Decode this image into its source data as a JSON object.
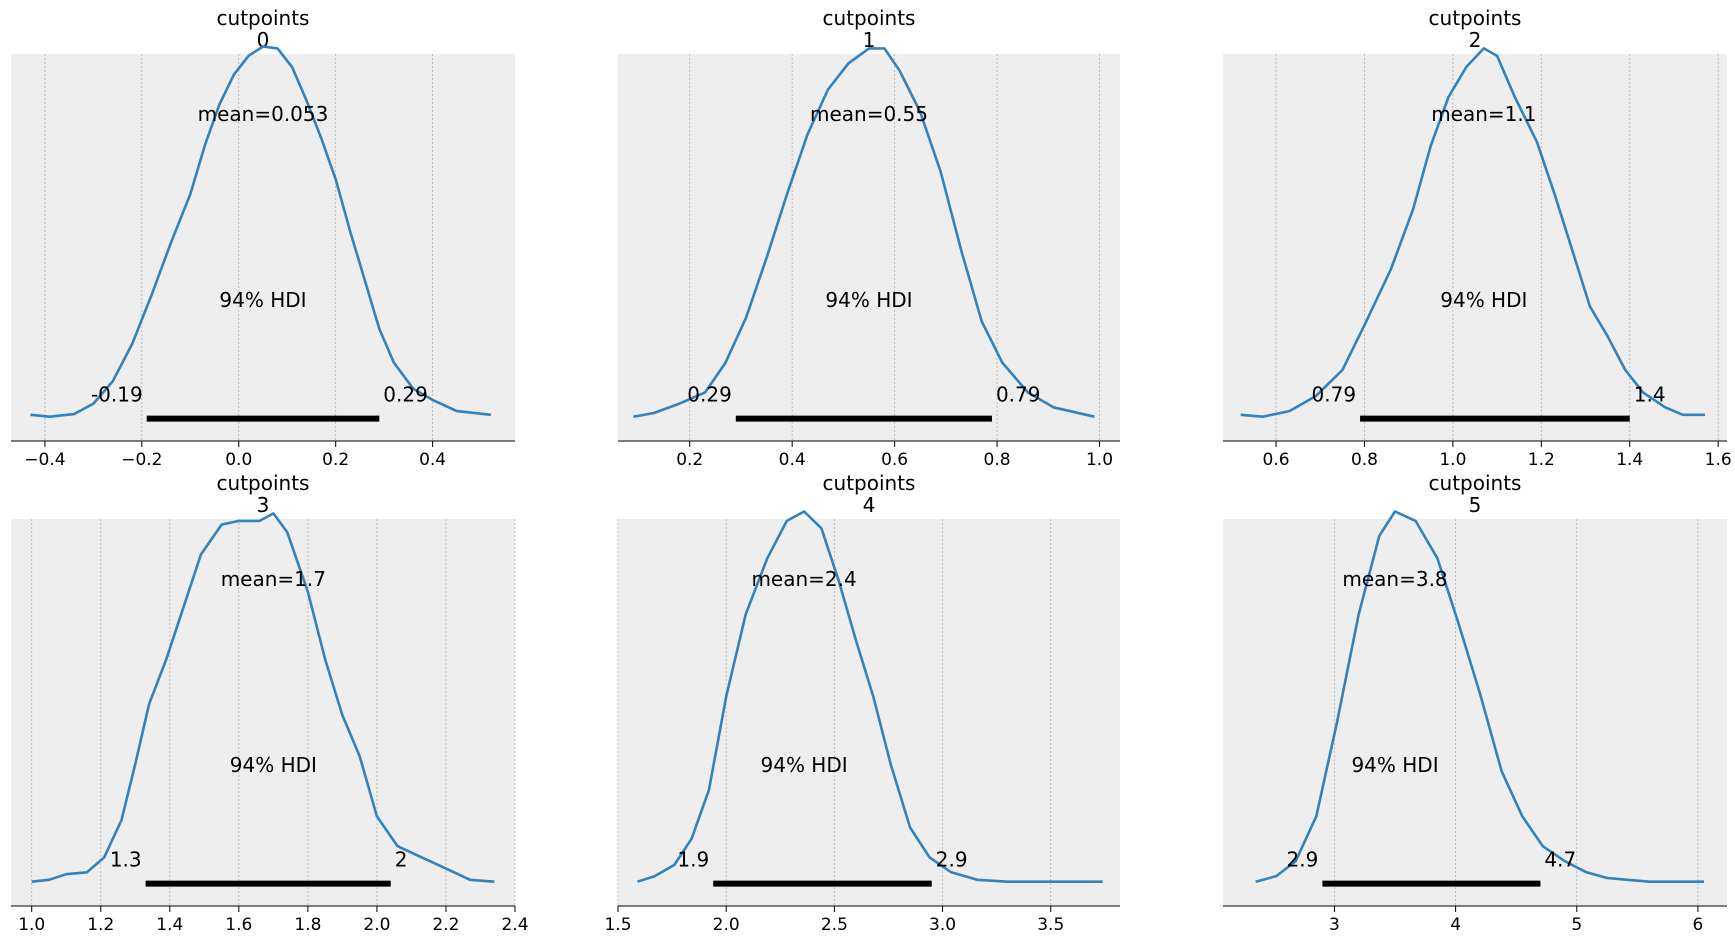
{
  "chart_data": [
    {
      "type": "area",
      "title": [
        "cutpoints",
        "0"
      ],
      "xlim": [
        -0.47,
        0.57
      ],
      "xticks": [
        -0.4,
        -0.2,
        0.0,
        0.2,
        0.4
      ],
      "xtick_labels": [
        "−0.4",
        "−0.2",
        "0.0",
        "0.2",
        "0.4"
      ],
      "mean_label": "mean=0.053",
      "hdi_label": "94% HDI",
      "hdi": [
        -0.19,
        0.29
      ],
      "hdi_labels": [
        "-0.19",
        "0.29"
      ],
      "density": [
        [
          -0.43,
          0.01
        ],
        [
          -0.39,
          0.005
        ],
        [
          -0.34,
          0.012
        ],
        [
          -0.3,
          0.04
        ],
        [
          -0.26,
          0.1
        ],
        [
          -0.22,
          0.2
        ],
        [
          -0.18,
          0.33
        ],
        [
          -0.14,
          0.47
        ],
        [
          -0.1,
          0.6
        ],
        [
          -0.07,
          0.73
        ],
        [
          -0.04,
          0.84
        ],
        [
          -0.01,
          0.92
        ],
        [
          0.02,
          0.97
        ],
        [
          0.05,
          0.995
        ],
        [
          0.08,
          0.99
        ],
        [
          0.11,
          0.94
        ],
        [
          0.14,
          0.85
        ],
        [
          0.17,
          0.75
        ],
        [
          0.2,
          0.64
        ],
        [
          0.23,
          0.5
        ],
        [
          0.26,
          0.37
        ],
        [
          0.29,
          0.24
        ],
        [
          0.32,
          0.15
        ],
        [
          0.36,
          0.08
        ],
        [
          0.4,
          0.05
        ],
        [
          0.45,
          0.02
        ],
        [
          0.52,
          0.01
        ]
      ],
      "grid": true
    },
    {
      "type": "area",
      "title": [
        "cutpoints",
        "1"
      ],
      "xlim": [
        0.06,
        1.04
      ],
      "xticks": [
        0.2,
        0.4,
        0.6,
        0.8,
        1.0
      ],
      "xtick_labels": [
        "0.2",
        "0.4",
        "0.6",
        "0.8",
        "1.0"
      ],
      "mean_label": "mean=0.55",
      "hdi_label": "94% HDI",
      "hdi": [
        0.29,
        0.79
      ],
      "hdi_labels": [
        "0.29",
        "0.79"
      ],
      "density": [
        [
          0.09,
          0.005
        ],
        [
          0.13,
          0.015
        ],
        [
          0.18,
          0.04
        ],
        [
          0.23,
          0.07
        ],
        [
          0.27,
          0.15
        ],
        [
          0.31,
          0.27
        ],
        [
          0.35,
          0.43
        ],
        [
          0.39,
          0.6
        ],
        [
          0.43,
          0.76
        ],
        [
          0.47,
          0.88
        ],
        [
          0.51,
          0.95
        ],
        [
          0.55,
          0.99
        ],
        [
          0.58,
          0.99
        ],
        [
          0.61,
          0.93
        ],
        [
          0.65,
          0.82
        ],
        [
          0.69,
          0.66
        ],
        [
          0.73,
          0.45
        ],
        [
          0.77,
          0.26
        ],
        [
          0.81,
          0.15
        ],
        [
          0.86,
          0.07
        ],
        [
          0.91,
          0.03
        ],
        [
          0.99,
          0.005
        ]
      ],
      "grid": true
    },
    {
      "type": "area",
      "title": [
        "cutpoints",
        "2"
      ],
      "xlim": [
        0.48,
        1.62
      ],
      "xticks": [
        0.6,
        0.8,
        1.0,
        1.2,
        1.4,
        1.6
      ],
      "xtick_labels": [
        "0.6",
        "0.8",
        "1.0",
        "1.2",
        "1.4",
        "1.6"
      ],
      "mean_label": "mean=1.1",
      "hdi_label": "94% HDI",
      "hdi_label_pos": [
        1.08,
        0.36
      ],
      "hdi": [
        0.79,
        1.4
      ],
      "hdi_labels": [
        "0.79",
        "1.4"
      ],
      "density": [
        [
          0.52,
          0.01
        ],
        [
          0.57,
          0.005
        ],
        [
          0.63,
          0.02
        ],
        [
          0.69,
          0.06
        ],
        [
          0.75,
          0.13
        ],
        [
          0.8,
          0.25
        ],
        [
          0.86,
          0.4
        ],
        [
          0.91,
          0.56
        ],
        [
          0.95,
          0.73
        ],
        [
          0.99,
          0.86
        ],
        [
          1.03,
          0.94
        ],
        [
          1.07,
          0.99
        ],
        [
          1.1,
          0.97
        ],
        [
          1.14,
          0.86
        ],
        [
          1.19,
          0.74
        ],
        [
          1.23,
          0.6
        ],
        [
          1.27,
          0.45
        ],
        [
          1.31,
          0.3
        ],
        [
          1.35,
          0.22
        ],
        [
          1.39,
          0.13
        ],
        [
          1.43,
          0.07
        ],
        [
          1.48,
          0.03
        ],
        [
          1.52,
          0.01
        ],
        [
          1.57,
          0.01
        ]
      ],
      "grid": true
    },
    {
      "type": "area",
      "title": [
        "cutpoints",
        "3"
      ],
      "xlim": [
        0.94,
        2.4
      ],
      "xticks": [
        1.0,
        1.2,
        1.4,
        1.6,
        1.8,
        2.0,
        2.2,
        2.4
      ],
      "xtick_labels": [
        "1.0",
        "1.2",
        "1.4",
        "1.6",
        "1.8",
        "2.0",
        "2.2",
        "2.4"
      ],
      "mean_label": "mean=1.7",
      "hdi_label": "94% HDI",
      "hdi": [
        1.33,
        2.04
      ],
      "hdi_labels": [
        "1.3",
        "2"
      ],
      "density": [
        [
          1.0,
          0.005
        ],
        [
          1.05,
          0.01
        ],
        [
          1.1,
          0.025
        ],
        [
          1.16,
          0.03
        ],
        [
          1.21,
          0.07
        ],
        [
          1.26,
          0.17
        ],
        [
          1.3,
          0.32
        ],
        [
          1.34,
          0.48
        ],
        [
          1.39,
          0.6
        ],
        [
          1.44,
          0.74
        ],
        [
          1.49,
          0.88
        ],
        [
          1.55,
          0.96
        ],
        [
          1.6,
          0.97
        ],
        [
          1.66,
          0.97
        ],
        [
          1.7,
          0.99
        ],
        [
          1.74,
          0.94
        ],
        [
          1.8,
          0.78
        ],
        [
          1.85,
          0.6
        ],
        [
          1.9,
          0.45
        ],
        [
          1.95,
          0.34
        ],
        [
          2.0,
          0.18
        ],
        [
          2.06,
          0.1
        ],
        [
          2.13,
          0.07
        ],
        [
          2.2,
          0.04
        ],
        [
          2.27,
          0.01
        ],
        [
          2.34,
          0.005
        ]
      ],
      "grid": true
    },
    {
      "type": "area",
      "title": [
        "cutpoints",
        "4"
      ],
      "xlim": [
        1.5,
        3.82
      ],
      "xticks": [
        1.5,
        2.0,
        2.5,
        3.0,
        3.5
      ],
      "xtick_labels": [
        "1.5",
        "2.0",
        "2.5",
        "3.0",
        "3.5"
      ],
      "mean_label": "mean=2.4",
      "hdi_label": "94% HDI",
      "hdi": [
        1.94,
        2.95
      ],
      "hdi_labels": [
        "1.9",
        "2.9"
      ],
      "density": [
        [
          1.59,
          0.005
        ],
        [
          1.67,
          0.02
        ],
        [
          1.76,
          0.05
        ],
        [
          1.84,
          0.12
        ],
        [
          1.92,
          0.25
        ],
        [
          2.0,
          0.5
        ],
        [
          2.09,
          0.72
        ],
        [
          2.19,
          0.87
        ],
        [
          2.28,
          0.97
        ],
        [
          2.36,
          0.995
        ],
        [
          2.44,
          0.95
        ],
        [
          2.52,
          0.81
        ],
        [
          2.6,
          0.65
        ],
        [
          2.68,
          0.5
        ],
        [
          2.76,
          0.32
        ],
        [
          2.85,
          0.15
        ],
        [
          2.94,
          0.07
        ],
        [
          3.04,
          0.03
        ],
        [
          3.16,
          0.01
        ],
        [
          3.3,
          0.005
        ],
        [
          3.45,
          0.005
        ],
        [
          3.6,
          0.005
        ],
        [
          3.74,
          0.005
        ]
      ],
      "grid": true
    },
    {
      "type": "area",
      "title": [
        "cutpoints",
        "5"
      ],
      "xlim": [
        2.08,
        6.24
      ],
      "xticks": [
        3,
        4,
        5,
        6
      ],
      "xtick_labels": [
        "3",
        "4",
        "5",
        "6"
      ],
      "mean_label": "mean=3.8",
      "hdi_label": "94% HDI",
      "hdi": [
        2.9,
        4.7
      ],
      "hdi_labels": [
        "2.9",
        "4.7"
      ],
      "density": [
        [
          2.35,
          0.005
        ],
        [
          2.52,
          0.02
        ],
        [
          2.68,
          0.06
        ],
        [
          2.85,
          0.18
        ],
        [
          3.02,
          0.43
        ],
        [
          3.2,
          0.72
        ],
        [
          3.37,
          0.93
        ],
        [
          3.5,
          0.995
        ],
        [
          3.67,
          0.97
        ],
        [
          3.85,
          0.87
        ],
        [
          4.02,
          0.7
        ],
        [
          4.2,
          0.51
        ],
        [
          4.38,
          0.3
        ],
        [
          4.55,
          0.18
        ],
        [
          4.72,
          0.1
        ],
        [
          4.9,
          0.06
        ],
        [
          5.08,
          0.03
        ],
        [
          5.25,
          0.015
        ],
        [
          5.42,
          0.01
        ],
        [
          5.6,
          0.005
        ],
        [
          5.8,
          0.005
        ],
        [
          6.05,
          0.005
        ]
      ],
      "grid": true
    }
  ],
  "colors": {
    "line": "#3182bd",
    "axes_face": "#eeeeee",
    "grid": "#b0b0b0",
    "hdi_bar": "#000000"
  }
}
